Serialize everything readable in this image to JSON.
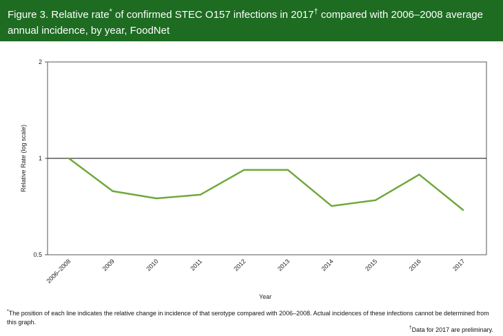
{
  "header": {
    "title_part1": "Figure 3. Relative rate",
    "title_mark1": "*",
    "title_part2": " of confirmed STEC O157 infections in 2017",
    "title_mark2": "†",
    "title_part3": " compared with 2006–2008 average annual  incidence, by year, FoodNet"
  },
  "colors": {
    "header_bg": "#1e6b22",
    "series": "#6fa83c",
    "title_text": "#ffffff"
  },
  "chart_data": {
    "type": "line",
    "title": "",
    "xlabel": "Year",
    "ylabel": "Relative Rate (log scale)",
    "yscale": "log",
    "ylim": [
      0.5,
      2
    ],
    "yticks": [
      0.5,
      1,
      2
    ],
    "ytick_labels": [
      "0.5",
      "1",
      "2"
    ],
    "reference_line": 1,
    "grid": false,
    "categories": [
      "2006–2008",
      "2009",
      "2010",
      "2011",
      "2012",
      "2013",
      "2014",
      "2015",
      "2016",
      "2017"
    ],
    "series": [
      {
        "values": [
          1.0,
          0.79,
          0.75,
          0.77,
          0.92,
          0.92,
          0.71,
          0.74,
          0.89,
          0.69
        ]
      }
    ]
  },
  "footnotes": {
    "note1_mark": "*",
    "note1": "The position of each line indicates the relative change in incidence of that serotype compared with 2006–2008. Actual incidences of these infections cannot be determined  from this graph.",
    "note2_mark": "†",
    "note2": "Data for 2017 are preliminary."
  }
}
